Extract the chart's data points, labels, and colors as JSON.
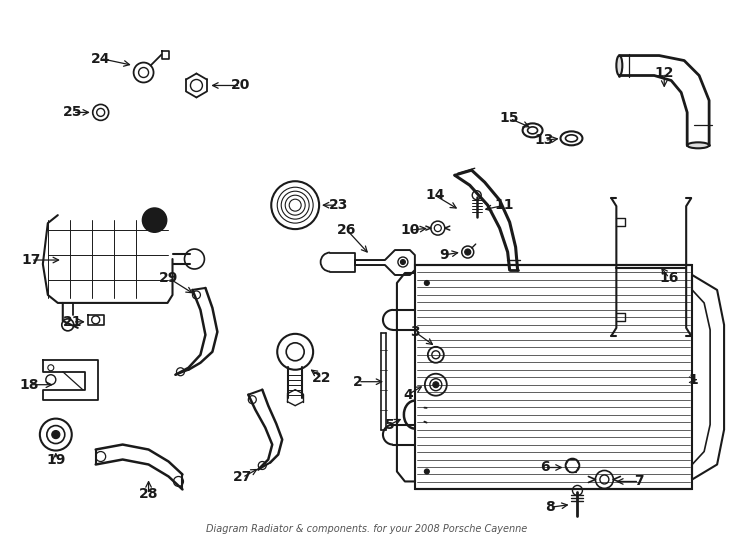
{
  "title": "Diagram Radiator & components. for your 2008 Porsche Cayenne",
  "bg_color": "#ffffff",
  "line_color": "#1a1a1a",
  "fig_w": 7.34,
  "fig_h": 5.4,
  "dpi": 100
}
